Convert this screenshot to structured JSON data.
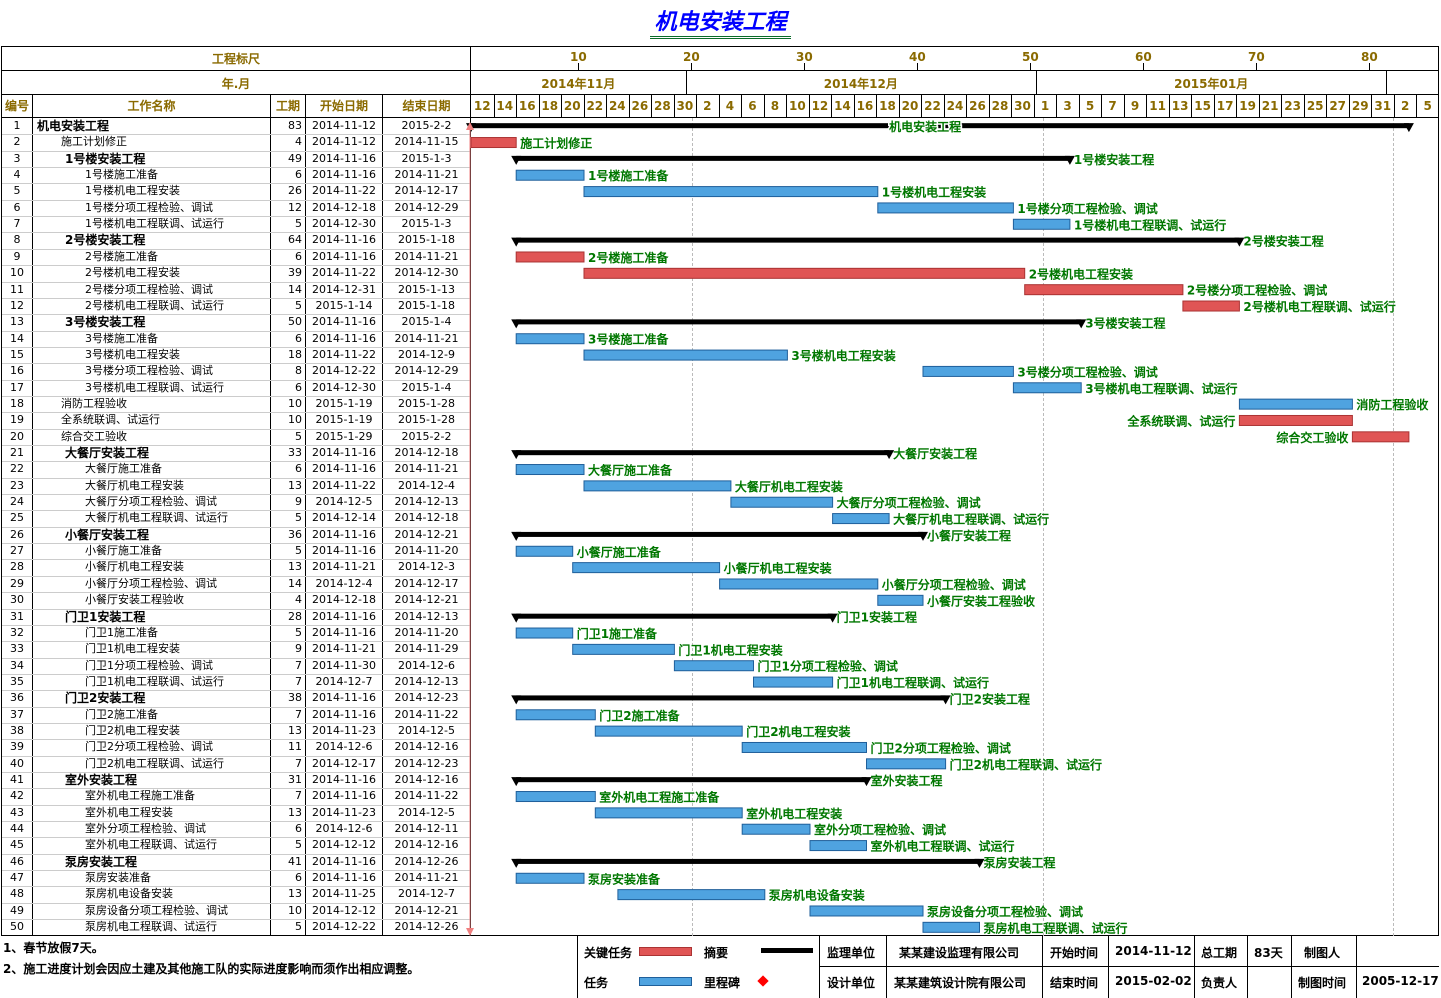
{
  "title": "机电安装工程",
  "header": {
    "ruler_label": "工程标尺",
    "month_label": "年.月",
    "cols": {
      "id": "编号",
      "name": "工作名称",
      "dur": "工期",
      "start": "开始日期",
      "end": "结束日期"
    },
    "ruler_ticks": [
      "10",
      "20",
      "30",
      "40",
      "50",
      "60",
      "70",
      "80"
    ],
    "months": [
      "2014年11月",
      "2014年12月",
      "2015年01月"
    ],
    "days": [
      "12",
      "14",
      "16",
      "18",
      "20",
      "22",
      "24",
      "26",
      "28",
      "30",
      "2",
      "4",
      "6",
      "8",
      "10",
      "12",
      "14",
      "16",
      "18",
      "20",
      "22",
      "24",
      "26",
      "28",
      "30",
      "1",
      "3",
      "5",
      "7",
      "9",
      "11",
      "13",
      "15",
      "17",
      "19",
      "21",
      "23",
      "25",
      "27",
      "29",
      "31",
      "2",
      "5"
    ]
  },
  "colors": {
    "critical": "#e05555",
    "task": "#4fa3e0",
    "summary": "#000000",
    "label": "#007700",
    "milestone": "#ff0000"
  },
  "chart_data": {
    "type": "gantt",
    "title": "机电安装工程",
    "tasks": [
      {
        "id": "1",
        "name": "机电安装工程",
        "dur": "83",
        "start": "2014-11-12",
        "end": "2015-2-2",
        "level": 0,
        "type": "summary",
        "label_side": "mid"
      },
      {
        "id": "2",
        "name": "施工计划修正",
        "dur": "4",
        "start": "2014-11-12",
        "end": "2014-11-15",
        "level": 1,
        "type": "critical",
        "label_side": "right"
      },
      {
        "id": "3",
        "name": "1号楼安装工程",
        "dur": "49",
        "start": "2014-11-16",
        "end": "2015-1-3",
        "level": 1,
        "type": "summary",
        "label_side": "right"
      },
      {
        "id": "4",
        "name": "1号楼施工准备",
        "dur": "6",
        "start": "2014-11-16",
        "end": "2014-11-21",
        "level": 2,
        "type": "task",
        "label_side": "right"
      },
      {
        "id": "5",
        "name": "1号楼机电工程安装",
        "dur": "26",
        "start": "2014-11-22",
        "end": "2014-12-17",
        "level": 2,
        "type": "task",
        "label_side": "right"
      },
      {
        "id": "6",
        "name": "1号楼分项工程检验、调试",
        "dur": "12",
        "start": "2014-12-18",
        "end": "2014-12-29",
        "level": 2,
        "type": "task",
        "label_side": "right"
      },
      {
        "id": "7",
        "name": "1号楼机电工程联调、试运行",
        "dur": "5",
        "start": "2014-12-30",
        "end": "2015-1-3",
        "level": 2,
        "type": "task",
        "label_side": "right"
      },
      {
        "id": "8",
        "name": "2号楼安装工程",
        "dur": "64",
        "start": "2014-11-16",
        "end": "2015-1-18",
        "level": 1,
        "type": "summary",
        "label_side": "right"
      },
      {
        "id": "9",
        "name": "2号楼施工准备",
        "dur": "6",
        "start": "2014-11-16",
        "end": "2014-11-21",
        "level": 2,
        "type": "critical",
        "label_side": "right"
      },
      {
        "id": "10",
        "name": "2号楼机电工程安装",
        "dur": "39",
        "start": "2014-11-22",
        "end": "2014-12-30",
        "level": 2,
        "type": "critical",
        "label_side": "right"
      },
      {
        "id": "11",
        "name": "2号楼分项工程检验、调试",
        "dur": "14",
        "start": "2014-12-31",
        "end": "2015-1-13",
        "level": 2,
        "type": "critical",
        "label_side": "right"
      },
      {
        "id": "12",
        "name": "2号楼机电工程联调、试运行",
        "dur": "5",
        "start": "2015-1-14",
        "end": "2015-1-18",
        "level": 2,
        "type": "critical",
        "label_side": "right"
      },
      {
        "id": "13",
        "name": "3号楼安装工程",
        "dur": "50",
        "start": "2014-11-16",
        "end": "2015-1-4",
        "level": 1,
        "type": "summary",
        "label_side": "right"
      },
      {
        "id": "14",
        "name": "3号楼施工准备",
        "dur": "6",
        "start": "2014-11-16",
        "end": "2014-11-21",
        "level": 2,
        "type": "task",
        "label_side": "right"
      },
      {
        "id": "15",
        "name": "3号楼机电工程安装",
        "dur": "18",
        "start": "2014-11-22",
        "end": "2014-12-9",
        "level": 2,
        "type": "task",
        "label_side": "right"
      },
      {
        "id": "16",
        "name": "3号楼分项工程检验、调试",
        "dur": "8",
        "start": "2014-12-22",
        "end": "2014-12-29",
        "level": 2,
        "type": "task",
        "label_side": "right"
      },
      {
        "id": "17",
        "name": "3号楼机电工程联调、试运行",
        "dur": "6",
        "start": "2014-12-30",
        "end": "2015-1-4",
        "level": 2,
        "type": "task",
        "label_side": "right"
      },
      {
        "id": "18",
        "name": "消防工程验收",
        "dur": "10",
        "start": "2015-1-19",
        "end": "2015-1-28",
        "level": 1,
        "type": "task",
        "label_side": "right"
      },
      {
        "id": "19",
        "name": "全系统联调、试运行",
        "dur": "10",
        "start": "2015-1-19",
        "end": "2015-1-28",
        "level": 1,
        "type": "critical",
        "label_side": "left"
      },
      {
        "id": "20",
        "name": "综合交工验收",
        "dur": "5",
        "start": "2015-1-29",
        "end": "2015-2-2",
        "level": 1,
        "type": "critical",
        "label_side": "left"
      },
      {
        "id": "21",
        "name": "大餐厅安装工程",
        "dur": "33",
        "start": "2014-11-16",
        "end": "2014-12-18",
        "level": 1,
        "type": "summary",
        "label_side": "right"
      },
      {
        "id": "22",
        "name": "大餐厅施工准备",
        "dur": "6",
        "start": "2014-11-16",
        "end": "2014-11-21",
        "level": 2,
        "type": "task",
        "label_side": "right"
      },
      {
        "id": "23",
        "name": "大餐厅机电工程安装",
        "dur": "13",
        "start": "2014-11-22",
        "end": "2014-12-4",
        "level": 2,
        "type": "task",
        "label_side": "right"
      },
      {
        "id": "24",
        "name": "大餐厅分项工程检验、调试",
        "dur": "9",
        "start": "2014-12-5",
        "end": "2014-12-13",
        "level": 2,
        "type": "task",
        "label_side": "right"
      },
      {
        "id": "25",
        "name": "大餐厅机电工程联调、试运行",
        "dur": "5",
        "start": "2014-12-14",
        "end": "2014-12-18",
        "level": 2,
        "type": "task",
        "label_side": "right"
      },
      {
        "id": "26",
        "name": "小餐厅安装工程",
        "dur": "36",
        "start": "2014-11-16",
        "end": "2014-12-21",
        "level": 1,
        "type": "summary",
        "label_side": "right"
      },
      {
        "id": "27",
        "name": "小餐厅施工准备",
        "dur": "5",
        "start": "2014-11-16",
        "end": "2014-11-20",
        "level": 2,
        "type": "task",
        "label_side": "right"
      },
      {
        "id": "28",
        "name": "小餐厅机电工程安装",
        "dur": "13",
        "start": "2014-11-21",
        "end": "2014-12-3",
        "level": 2,
        "type": "task",
        "label_side": "right"
      },
      {
        "id": "29",
        "name": "小餐厅分项工程检验、调试",
        "dur": "14",
        "start": "2014-12-4",
        "end": "2014-12-17",
        "level": 2,
        "type": "task",
        "label_side": "right"
      },
      {
        "id": "30",
        "name": "小餐厅安装工程验收",
        "dur": "4",
        "start": "2014-12-18",
        "end": "2014-12-21",
        "level": 2,
        "type": "task",
        "label_side": "right"
      },
      {
        "id": "31",
        "name": "门卫1安装工程",
        "dur": "28",
        "start": "2014-11-16",
        "end": "2014-12-13",
        "level": 1,
        "type": "summary",
        "label_side": "right"
      },
      {
        "id": "32",
        "name": "门卫1施工准备",
        "dur": "5",
        "start": "2014-11-16",
        "end": "2014-11-20",
        "level": 2,
        "type": "task",
        "label_side": "right"
      },
      {
        "id": "33",
        "name": "门卫1机电工程安装",
        "dur": "9",
        "start": "2014-11-21",
        "end": "2014-11-29",
        "level": 2,
        "type": "task",
        "label_side": "right"
      },
      {
        "id": "34",
        "name": "门卫1分项工程检验、调试",
        "dur": "7",
        "start": "2014-11-30",
        "end": "2014-12-6",
        "level": 2,
        "type": "task",
        "label_side": "right"
      },
      {
        "id": "35",
        "name": "门卫1机电工程联调、试运行",
        "dur": "7",
        "start": "2014-12-7",
        "end": "2014-12-13",
        "level": 2,
        "type": "task",
        "label_side": "right"
      },
      {
        "id": "36",
        "name": "门卫2安装工程",
        "dur": "38",
        "start": "2014-11-16",
        "end": "2014-12-23",
        "level": 1,
        "type": "summary",
        "label_side": "right"
      },
      {
        "id": "37",
        "name": "门卫2施工准备",
        "dur": "7",
        "start": "2014-11-16",
        "end": "2014-11-22",
        "level": 2,
        "type": "task",
        "label_side": "right"
      },
      {
        "id": "38",
        "name": "门卫2机电工程安装",
        "dur": "13",
        "start": "2014-11-23",
        "end": "2014-12-5",
        "level": 2,
        "type": "task",
        "label_side": "right"
      },
      {
        "id": "39",
        "name": "门卫2分项工程检验、调试",
        "dur": "11",
        "start": "2014-12-6",
        "end": "2014-12-16",
        "level": 2,
        "type": "task",
        "label_side": "right"
      },
      {
        "id": "40",
        "name": "门卫2机电工程联调、试运行",
        "dur": "7",
        "start": "2014-12-17",
        "end": "2014-12-23",
        "level": 2,
        "type": "task",
        "label_side": "right"
      },
      {
        "id": "41",
        "name": "室外安装工程",
        "dur": "31",
        "start": "2014-11-16",
        "end": "2014-12-16",
        "level": 1,
        "type": "summary",
        "label_side": "right"
      },
      {
        "id": "42",
        "name": "室外机电工程施工准备",
        "dur": "7",
        "start": "2014-11-16",
        "end": "2014-11-22",
        "level": 2,
        "type": "task",
        "label_side": "right"
      },
      {
        "id": "43",
        "name": "室外机电工程安装",
        "dur": "13",
        "start": "2014-11-23",
        "end": "2014-12-5",
        "level": 2,
        "type": "task",
        "label_side": "right"
      },
      {
        "id": "44",
        "name": "室外分项工程检验、调试",
        "dur": "6",
        "start": "2014-12-6",
        "end": "2014-12-11",
        "level": 2,
        "type": "task",
        "label_side": "right"
      },
      {
        "id": "45",
        "name": "室外机电工程联调、试运行",
        "dur": "5",
        "start": "2014-12-12",
        "end": "2014-12-16",
        "level": 2,
        "type": "task",
        "label_side": "right"
      },
      {
        "id": "46",
        "name": "泵房安装工程",
        "dur": "41",
        "start": "2014-11-16",
        "end": "2014-12-26",
        "level": 1,
        "type": "summary",
        "label_side": "right"
      },
      {
        "id": "47",
        "name": "泵房安装准备",
        "dur": "6",
        "start": "2014-11-16",
        "end": "2014-11-21",
        "level": 2,
        "type": "task",
        "label_side": "right"
      },
      {
        "id": "48",
        "name": "泵房机电设备安装",
        "dur": "13",
        "start": "2014-11-25",
        "end": "2014-12-7",
        "level": 2,
        "type": "task",
        "label_side": "right"
      },
      {
        "id": "49",
        "name": "泵房设备分项工程检验、调试",
        "dur": "10",
        "start": "2014-12-12",
        "end": "2014-12-21",
        "level": 2,
        "type": "task",
        "label_side": "right"
      },
      {
        "id": "50",
        "name": "泵房机电工程联调、试运行",
        "dur": "5",
        "start": "2014-12-22",
        "end": "2014-12-26",
        "level": 2,
        "type": "task",
        "label_side": "right"
      }
    ]
  },
  "notes": {
    "n1": "1、春节放假7天。",
    "n2": "2、施工进度计划会因应土建及其他施工队的实际进度影响而须作出相应调整。"
  },
  "legend": {
    "critical": "关键任务",
    "summary": "摘要",
    "task": "任务",
    "milestone": "里程碑"
  },
  "info": {
    "supervisor_label": "监理单位",
    "supervisor": "某某建设监理有限公司",
    "designer_label": "设计单位",
    "designer": "某某建筑设计院有限公司",
    "start_label": "开始时间",
    "start": "2014-11-12",
    "end_label": "结束时间",
    "end": "2015-02-02",
    "total_label": "总工期",
    "total": "83天",
    "owner_label": "负责人",
    "owner": "",
    "maker_label": "制图人",
    "maker": "",
    "made_time_label": "制图时间",
    "made_time": "2005-12-17"
  }
}
